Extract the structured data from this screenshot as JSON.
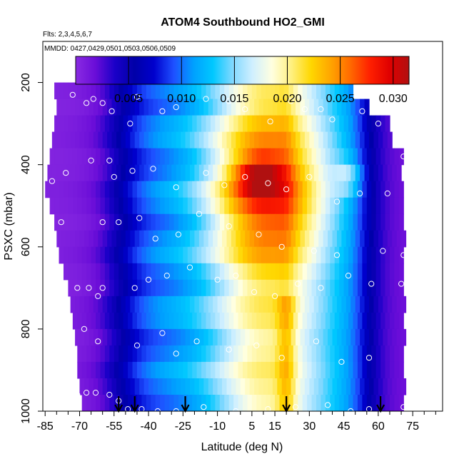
{
  "chart_data": {
    "type": "heatmap",
    "title": "ATOM4 Southbound HO2_GMI",
    "subtitle_flights": "Flts: 2,3,4,5,6,7",
    "subtitle_dates": "MMDD: 0427,0429,0501,0503,0506,0509",
    "xlabel": "Latitude (deg N)",
    "ylabel": "PSXC (mbar)",
    "x_ticks": [
      "-85",
      "-70",
      "-55",
      "-40",
      "-25",
      "-10",
      "5",
      "15",
      "30",
      "45",
      "60",
      "75"
    ],
    "x_tick_values": [
      -85,
      -70,
      -55,
      -40,
      -25,
      -10,
      5,
      15,
      30,
      45,
      60,
      75
    ],
    "y_ticks": [
      "200",
      "400",
      "600",
      "800",
      "1000"
    ],
    "y_tick_values": [
      200,
      400,
      600,
      800,
      1000
    ],
    "xlim": [
      -86,
      88
    ],
    "ylim": [
      1000,
      100
    ],
    "colorbar": {
      "ticks": [
        "0.005",
        "0.010",
        "0.015",
        "0.020",
        "0.025",
        "0.030"
      ],
      "tick_values": [
        0.005,
        0.01,
        0.015,
        0.02,
        0.025,
        0.03
      ],
      "range": [
        0.0,
        0.0315
      ],
      "colors": [
        "#8A2BE2",
        "#6A0DD8",
        "#1A00C8",
        "#0000A8",
        "#0000CD",
        "#1E50FF",
        "#00A0FF",
        "#00C8FF",
        "#80D8FF",
        "#CFEFFF",
        "#FFFFE0",
        "#FFF080",
        "#FFD700",
        "#FFA500",
        "#FF6A00",
        "#FF2000",
        "#E00000",
        "#B01010"
      ]
    },
    "pressure_levels": [
      180,
      220,
      260,
      300,
      340,
      380,
      420,
      460,
      500,
      540,
      580,
      620,
      660,
      700,
      740,
      780,
      820,
      860,
      900,
      940,
      980
    ],
    "lat_extent": [
      [
        -46,
        26
      ],
      [
        -81,
        49
      ],
      [
        -80,
        55
      ],
      [
        -81,
        64
      ],
      [
        -82,
        66
      ],
      [
        -83,
        70
      ],
      [
        -84,
        70
      ],
      [
        -85,
        71
      ],
      [
        -83,
        71
      ],
      [
        -81,
        71
      ],
      [
        -80,
        71
      ],
      [
        -79,
        71
      ],
      [
        -77,
        71
      ],
      [
        -75,
        71
      ],
      [
        -74,
        71
      ],
      [
        -73,
        71
      ],
      [
        -72,
        71
      ],
      [
        -71,
        71
      ],
      [
        -71,
        71
      ],
      [
        -70,
        71
      ],
      [
        -69,
        70
      ]
    ],
    "arrow_latitudes": [
      -53,
      -46,
      -24,
      20,
      61
    ],
    "observation_points": [
      [
        -73,
        230
      ],
      [
        -64,
        240
      ],
      [
        -60,
        250
      ],
      [
        -67,
        250
      ],
      [
        -56,
        270
      ],
      [
        -45,
        235
      ],
      [
        -48,
        300
      ],
      [
        -34,
        270
      ],
      [
        -28,
        260
      ],
      [
        -15,
        240
      ],
      [
        -5,
        245
      ],
      [
        2,
        265
      ],
      [
        13,
        295
      ],
      [
        22,
        245
      ],
      [
        28,
        265
      ],
      [
        35,
        265
      ],
      [
        40,
        290
      ],
      [
        53,
        270
      ],
      [
        60,
        300
      ],
      [
        71,
        380
      ],
      [
        -76,
        420
      ],
      [
        -65,
        390
      ],
      [
        -57,
        390
      ],
      [
        -55,
        430
      ],
      [
        -47,
        415
      ],
      [
        -38,
        410
      ],
      [
        -28,
        455
      ],
      [
        -15,
        420
      ],
      [
        -7,
        450
      ],
      [
        2,
        430
      ],
      [
        12,
        445
      ],
      [
        20,
        460
      ],
      [
        30,
        430
      ],
      [
        42,
        490
      ],
      [
        52,
        470
      ],
      [
        64,
        470
      ],
      [
        -82,
        440
      ],
      [
        -78,
        540
      ],
      [
        -60,
        540
      ],
      [
        -53,
        540
      ],
      [
        -44,
        530
      ],
      [
        -37,
        580
      ],
      [
        -27,
        570
      ],
      [
        -18,
        520
      ],
      [
        -5,
        550
      ],
      [
        8,
        570
      ],
      [
        18,
        600
      ],
      [
        32,
        610
      ],
      [
        42,
        620
      ],
      [
        62,
        610
      ],
      [
        71,
        620
      ],
      [
        -71,
        700
      ],
      [
        -66,
        700
      ],
      [
        -60,
        700
      ],
      [
        -62,
        720
      ],
      [
        -46,
        700
      ],
      [
        -40,
        680
      ],
      [
        -32,
        670
      ],
      [
        -22,
        650
      ],
      [
        -10,
        680
      ],
      [
        -2,
        670
      ],
      [
        6,
        710
      ],
      [
        15,
        720
      ],
      [
        25,
        690
      ],
      [
        35,
        700
      ],
      [
        47,
        670
      ],
      [
        57,
        690
      ],
      [
        70,
        690
      ],
      [
        -68,
        800
      ],
      [
        -62,
        830
      ],
      [
        -45,
        840
      ],
      [
        -34,
        810
      ],
      [
        -28,
        860
      ],
      [
        -19,
        830
      ],
      [
        -5,
        850
      ],
      [
        7,
        840
      ],
      [
        18,
        870
      ],
      [
        33,
        830
      ],
      [
        44,
        880
      ],
      [
        56,
        870
      ],
      [
        -71,
        960
      ],
      [
        -67,
        955
      ],
      [
        -63,
        955
      ],
      [
        -57,
        960
      ],
      [
        -53,
        975
      ],
      [
        -49,
        995
      ],
      [
        -43,
        995
      ],
      [
        -36,
        1000
      ],
      [
        -28,
        1000
      ],
      [
        -16,
        990
      ],
      [
        -2,
        1000
      ],
      [
        12,
        995
      ],
      [
        24,
        990
      ],
      [
        38,
        985
      ],
      [
        48,
        1000
      ],
      [
        56,
        995
      ],
      [
        71,
        990
      ]
    ]
  }
}
